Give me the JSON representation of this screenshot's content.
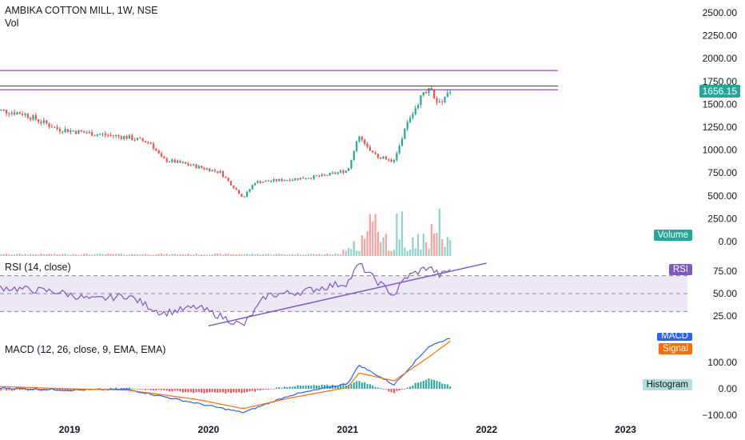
{
  "header": {
    "title": "AMBIKA COTTON MILL, 1W, NSE",
    "sub": "Vol"
  },
  "price_axis_ticks": [
    "2500.00",
    "2250.00",
    "2000.00",
    "1750.00",
    "1500.00",
    "1250.00",
    "1000.00",
    "750.00",
    "500.00",
    "250.00",
    "0.00"
  ],
  "rsi_axis_ticks": [
    "75.00",
    "50.00",
    "25.00"
  ],
  "macd_axis_ticks": [
    "100.00",
    "0.00",
    "−100.00"
  ],
  "x_ticks": [
    "2019",
    "2020",
    "2021",
    "2022",
    "2023"
  ],
  "last_price": "1656.15",
  "volume_badge": "Volume",
  "rsi": {
    "label": "RSI (14, close)",
    "badge": "RSI"
  },
  "macd": {
    "label": "MACD (12, 26, close, 9, EMA, EMA)",
    "macd_badge": "MACD",
    "signal_badge": "Signal",
    "hist_badge": "Histogram"
  },
  "colors": {
    "up": "#26a69a",
    "down": "#ef5350",
    "vol_up": "#8fd3cc",
    "vol_down": "#f5a3a1",
    "rsi": "#7e57c2",
    "rsi_band": "#ede7f6",
    "macd": "#2962ff",
    "signal": "#ff6d00",
    "hline": "#7b1fa2",
    "price_tag": "#26a69a",
    "hist_pos": "#26a69a",
    "hist_neg": "#ef5350"
  },
  "chart_data": {
    "type": "candlestick",
    "price_key_points": [
      [
        "2018-06",
        1450
      ],
      [
        "2018-09",
        1400
      ],
      [
        "2018-12",
        1230
      ],
      [
        "2019-03",
        1180
      ],
      [
        "2019-06",
        1140
      ],
      [
        "2019-08",
        1080
      ],
      [
        "2019-09",
        900
      ],
      [
        "2019-12",
        820
      ],
      [
        "2020-02",
        760
      ],
      [
        "2020-04",
        480
      ],
      [
        "2020-05",
        650
      ],
      [
        "2020-08",
        680
      ],
      [
        "2020-11",
        720
      ],
      [
        "2021-01",
        780
      ],
      [
        "2021-02",
        1150
      ],
      [
        "2021-03",
        960
      ],
      [
        "2021-05",
        880
      ],
      [
        "2021-06",
        1250
      ],
      [
        "2021-07",
        1500
      ],
      [
        "2021-08",
        1700
      ],
      [
        "2021-09",
        1480
      ],
      [
        "2021-10",
        1656.15
      ]
    ],
    "horizontal_levels": [
      1870,
      1700,
      1660
    ],
    "rsi_key_points": [
      [
        "2018-06",
        58
      ],
      [
        "2018-12",
        52
      ],
      [
        "2019-03",
        43
      ],
      [
        "2019-06",
        48
      ],
      [
        "2019-09",
        28
      ],
      [
        "2019-12",
        35
      ],
      [
        "2020-02",
        25
      ],
      [
        "2020-04",
        14
      ],
      [
        "2020-06",
        48
      ],
      [
        "2020-09",
        52
      ],
      [
        "2020-12",
        60
      ],
      [
        "2021-01",
        62
      ],
      [
        "2021-02",
        83
      ],
      [
        "2021-03",
        70
      ],
      [
        "2021-05",
        48
      ],
      [
        "2021-06",
        68
      ],
      [
        "2021-08",
        80
      ],
      [
        "2021-09",
        70
      ],
      [
        "2021-10",
        78
      ]
    ],
    "rsi_trendline": [
      [
        "2020-01",
        14
      ],
      [
        "2022-01",
        84
      ]
    ],
    "macd_key_points": [
      [
        "2018-06",
        5
      ],
      [
        "2019-01",
        -5
      ],
      [
        "2019-06",
        -2
      ],
      [
        "2019-12",
        -55
      ],
      [
        "2020-04",
        -90
      ],
      [
        "2020-08",
        -25
      ],
      [
        "2021-01",
        20
      ],
      [
        "2021-02",
        90
      ],
      [
        "2021-05",
        15
      ],
      [
        "2021-08",
        160
      ],
      [
        "2021-10",
        195
      ]
    ],
    "signal_key_points": [
      [
        "2018-06",
        10
      ],
      [
        "2019-01",
        0
      ],
      [
        "2019-06",
        -5
      ],
      [
        "2019-12",
        -40
      ],
      [
        "2020-04",
        -75
      ],
      [
        "2020-08",
        -35
      ],
      [
        "2021-01",
        5
      ],
      [
        "2021-02",
        60
      ],
      [
        "2021-05",
        30
      ],
      [
        "2021-08",
        120
      ],
      [
        "2021-10",
        185
      ]
    ]
  }
}
